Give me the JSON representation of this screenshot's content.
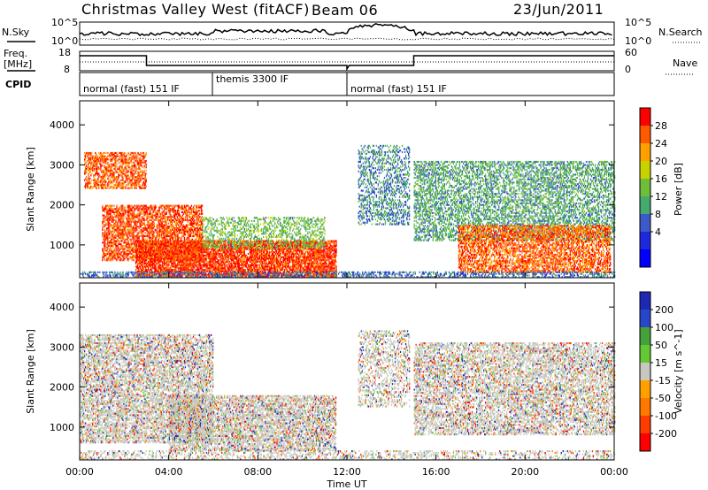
{
  "header": {
    "station": "Christmas Valley West (fitACF)",
    "beam": "Beam 06",
    "date": "23/Jun/2011"
  },
  "params": {
    "nsky_label": "N.Sky",
    "nsearch_label": "N.Search",
    "nsky_ticks": [
      "10^5",
      "10^0"
    ],
    "nsearch_ticks": [
      "10^5",
      "10^0"
    ],
    "freq_label_1": "Freq.",
    "freq_label_2": "[MHz]",
    "freq_ticks": [
      "18",
      "8"
    ],
    "nave_label": "Nave",
    "nave_ticks": [
      "60",
      "0"
    ],
    "cpid_label": "CPID",
    "cpid_segments": [
      {
        "label": "normal (fast) 151 IF",
        "start_h": 0,
        "end_h": 6
      },
      {
        "label": "themis 3300 IF",
        "start_h": 6,
        "end_h": 12
      },
      {
        "label": "normal (fast) 151 IF",
        "start_h": 12,
        "end_h": 24
      }
    ]
  },
  "axes": {
    "x_label": "Time UT",
    "x_ticks": [
      "00:00",
      "04:00",
      "08:00",
      "12:00",
      "16:00",
      "20:00",
      "00:00"
    ],
    "y_label_power": "Slant Range [km]",
    "y_label_velocity": "Slant Range [km]",
    "y_ticks": [
      "4000",
      "3000",
      "2000",
      "1000"
    ]
  },
  "colorbars": {
    "power_title": "Power [dB]",
    "power_ticks": [
      "28",
      "24",
      "20",
      "16",
      "12",
      "8",
      "4"
    ],
    "power_colors": [
      "#ff0000",
      "#ff5a00",
      "#ffa000",
      "#c8d200",
      "#6ebe3c",
      "#46aa6e",
      "#3c5ac8",
      "#1e28dc",
      "#0000ff"
    ],
    "velocity_title": "Velocity [m s^-1]",
    "velocity_ticks": [
      "200",
      "100",
      "50",
      "15",
      "-15",
      "-50",
      "-100",
      "-200"
    ],
    "velocity_colors": [
      "#1e28b4",
      "#2846c8",
      "#46a03c",
      "#64c832",
      "#c8c8c0",
      "#ffa000",
      "#ff7800",
      "#ff3c00",
      "#ff0000"
    ]
  },
  "chart_data": [
    {
      "type": "heatmap",
      "title": "Power",
      "xlabel": "Time UT",
      "ylabel": "Slant Range [km]",
      "xlim": [
        0,
        24
      ],
      "ylim": [
        180,
        4600
      ],
      "zlabel": "Power [dB]",
      "zlim": [
        0,
        30
      ],
      "features": [
        {
          "t0": 0.2,
          "t1": 3.0,
          "r0": 2400,
          "r1": 3300,
          "z": 26,
          "density": 0.55
        },
        {
          "t0": 1.0,
          "t1": 5.5,
          "r0": 600,
          "r1": 2000,
          "z": 27,
          "density": 0.6
        },
        {
          "t0": 2.5,
          "t1": 11.5,
          "r0": 200,
          "r1": 1100,
          "z": 28,
          "density": 0.75
        },
        {
          "t0": 5.5,
          "t1": 11.0,
          "r0": 900,
          "r1": 1700,
          "z": 14,
          "density": 0.35
        },
        {
          "t0": 12.5,
          "t1": 14.8,
          "r0": 1500,
          "r1": 3500,
          "z": 10,
          "density": 0.35
        },
        {
          "t0": 15.0,
          "t1": 24.0,
          "r0": 1100,
          "r1": 3100,
          "z": 12,
          "density": 0.45
        },
        {
          "t0": 17.0,
          "t1": 23.8,
          "r0": 300,
          "r1": 1500,
          "z": 26,
          "density": 0.55
        },
        {
          "t0": 0.0,
          "t1": 24.0,
          "r0": 180,
          "r1": 330,
          "z": 8,
          "density": 0.4
        }
      ]
    },
    {
      "type": "heatmap",
      "title": "Velocity",
      "xlabel": "Time UT",
      "ylabel": "Slant Range [km]",
      "xlim": [
        0,
        24
      ],
      "ylim": [
        180,
        4600
      ],
      "zlabel": "Velocity [m s^-1]",
      "zlim": [
        -200,
        200
      ],
      "features": [
        {
          "t0": 0.0,
          "t1": 6.0,
          "r0": 600,
          "r1": 3300,
          "v": 0,
          "density": 0.55
        },
        {
          "t0": 4.0,
          "t1": 11.5,
          "r0": 400,
          "r1": 1800,
          "v": 0,
          "density": 0.6
        },
        {
          "t0": 12.5,
          "t1": 14.8,
          "r0": 1500,
          "r1": 3400,
          "v": 30,
          "density": 0.35
        },
        {
          "t0": 15.0,
          "t1": 24.0,
          "r0": 800,
          "r1": 3100,
          "v": 0,
          "density": 0.5
        },
        {
          "t0": 0.0,
          "t1": 24.0,
          "r0": 180,
          "r1": 400,
          "v": -60,
          "density": 0.3
        }
      ]
    }
  ]
}
